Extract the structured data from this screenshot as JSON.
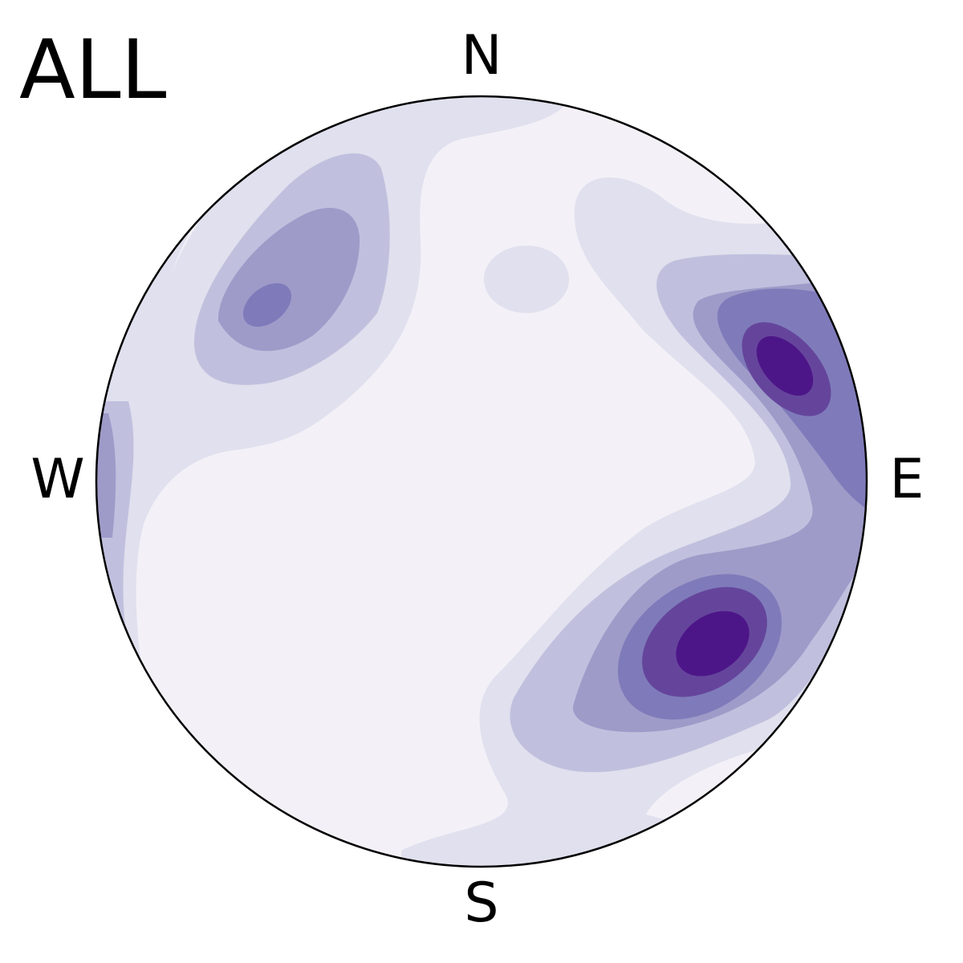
{
  "title": "ALL",
  "chart_data": {
    "type": "heatmap",
    "projection": "stereonet",
    "title": "ALL",
    "direction_labels": {
      "north": "N",
      "east": "E",
      "south": "S",
      "west": "W"
    },
    "colormap": "Purples",
    "level_colors": [
      "#f3f1f7",
      "#e0e0ee",
      "#c0c0de",
      "#9e9bc9",
      "#7f7bba",
      "#65459c",
      "#4d1688"
    ],
    "grid": false,
    "legend": "none",
    "density_peaks": [
      {
        "label": "east",
        "azimuth_deg": 58,
        "radius_frac": 0.85,
        "peak_level": 7
      },
      {
        "label": "southeast",
        "azimuth_deg": 135,
        "radius_frac": 0.6,
        "peak_level": 7
      },
      {
        "label": "northwest",
        "azimuth_deg": 317,
        "radius_frac": 0.67,
        "peak_level": 5
      },
      {
        "label": "north",
        "azimuth_deg": 12,
        "radius_frac": 0.5,
        "peak_level": 2
      }
    ]
  }
}
